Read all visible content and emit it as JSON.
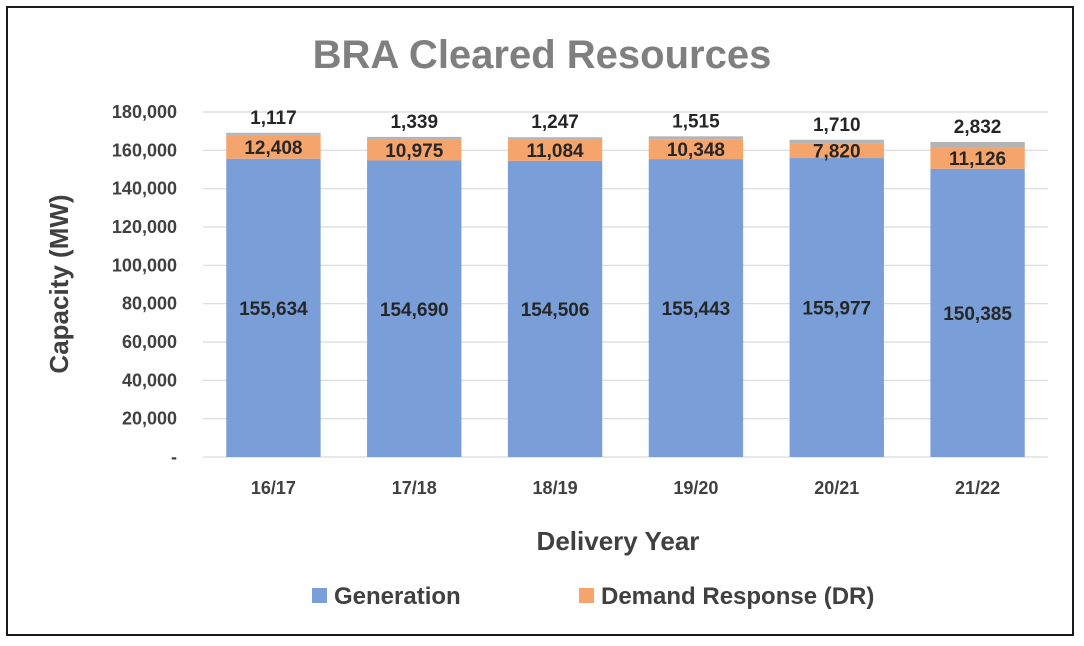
{
  "colors": {
    "generation": "#7a9fd8",
    "demand_response": "#f5a46b",
    "other": "#b4b4b4",
    "gridline": "#d9d9d9"
  },
  "chart_data": {
    "type": "bar",
    "stacked": true,
    "title": "BRA Cleared Resources",
    "xlabel": "Delivery Year",
    "ylabel": "Capacity (MW)",
    "ylim": [
      0,
      180000
    ],
    "yticks": [
      0,
      20000,
      40000,
      60000,
      80000,
      100000,
      120000,
      140000,
      160000,
      180000
    ],
    "ytick_labels": [
      "-",
      "20,000",
      "40,000",
      "60,000",
      "80,000",
      "100,000",
      "120,000",
      "140,000",
      "160,000",
      "180,000"
    ],
    "grid": true,
    "legend_position": "bottom",
    "categories": [
      "16/17",
      "17/18",
      "18/19",
      "19/20",
      "20/21",
      "21/22"
    ],
    "series": [
      {
        "name": "Generation",
        "color_key": "generation",
        "in_legend": true,
        "values": [
          155634,
          154690,
          154506,
          155443,
          155977,
          150385
        ],
        "labels": [
          "155,634",
          "154,690",
          "154,506",
          "155,443",
          "155,977",
          "150,385"
        ]
      },
      {
        "name": "Demand Response (DR)",
        "color_key": "demand_response",
        "in_legend": true,
        "values": [
          12408,
          10975,
          11084,
          10348,
          7820,
          11126
        ],
        "labels": [
          "12,408",
          "10,975",
          "11,084",
          "10,348",
          "7,820",
          "11,126"
        ]
      },
      {
        "name": "",
        "color_key": "other",
        "in_legend": false,
        "values": [
          1117,
          1339,
          1247,
          1515,
          1710,
          2832
        ],
        "labels": [
          "1,117",
          "1,339",
          "1,247",
          "1,515",
          "1,710",
          "2,832"
        ]
      }
    ]
  }
}
